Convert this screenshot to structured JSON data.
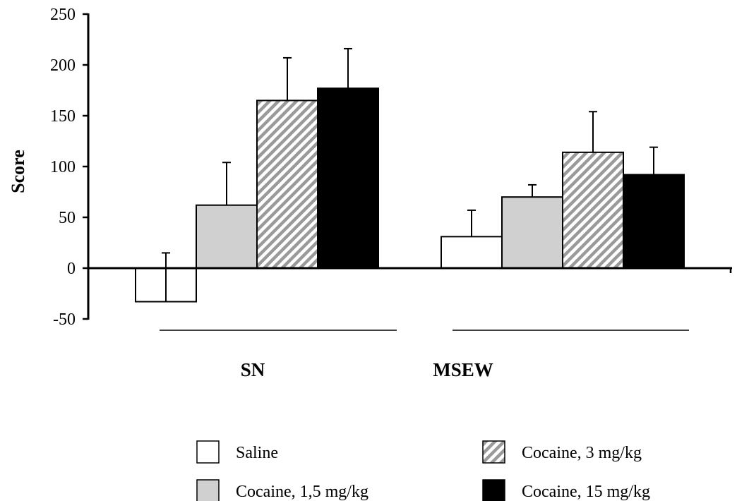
{
  "chart_data": {
    "type": "bar",
    "ylabel": "Score",
    "ylim": [
      -50,
      250
    ],
    "yticks": [
      -50,
      0,
      50,
      100,
      150,
      200,
      250
    ],
    "yticklabels": [
      "-50",
      "0",
      "50",
      "100",
      "150",
      "200",
      "250"
    ],
    "grid": false,
    "categories": [
      "SN",
      "MSEW"
    ],
    "series": [
      {
        "name": "Saline",
        "values": [
          -33,
          31
        ],
        "errors": [
          48,
          26
        ],
        "fill": "white"
      },
      {
        "name": "Cocaine, 1,5 mg/kg",
        "values": [
          62,
          70
        ],
        "errors": [
          42,
          12
        ],
        "fill": "light-gray"
      },
      {
        "name": "Cocaine, 3 mg/kg",
        "values": [
          165,
          114
        ],
        "errors": [
          42,
          40
        ],
        "fill": "diagonal-hatch"
      },
      {
        "name": "Cocaine, 15 mg/kg",
        "values": [
          177,
          92
        ],
        "errors": [
          39,
          27
        ],
        "fill": "black"
      }
    ],
    "legend_placement": "bottom"
  },
  "colors": {
    "white": "#ffffff",
    "light_gray": "#d0d0d0",
    "hatch_stripe": "#9a9a9a",
    "black": "#000000",
    "axis": "#000000"
  }
}
